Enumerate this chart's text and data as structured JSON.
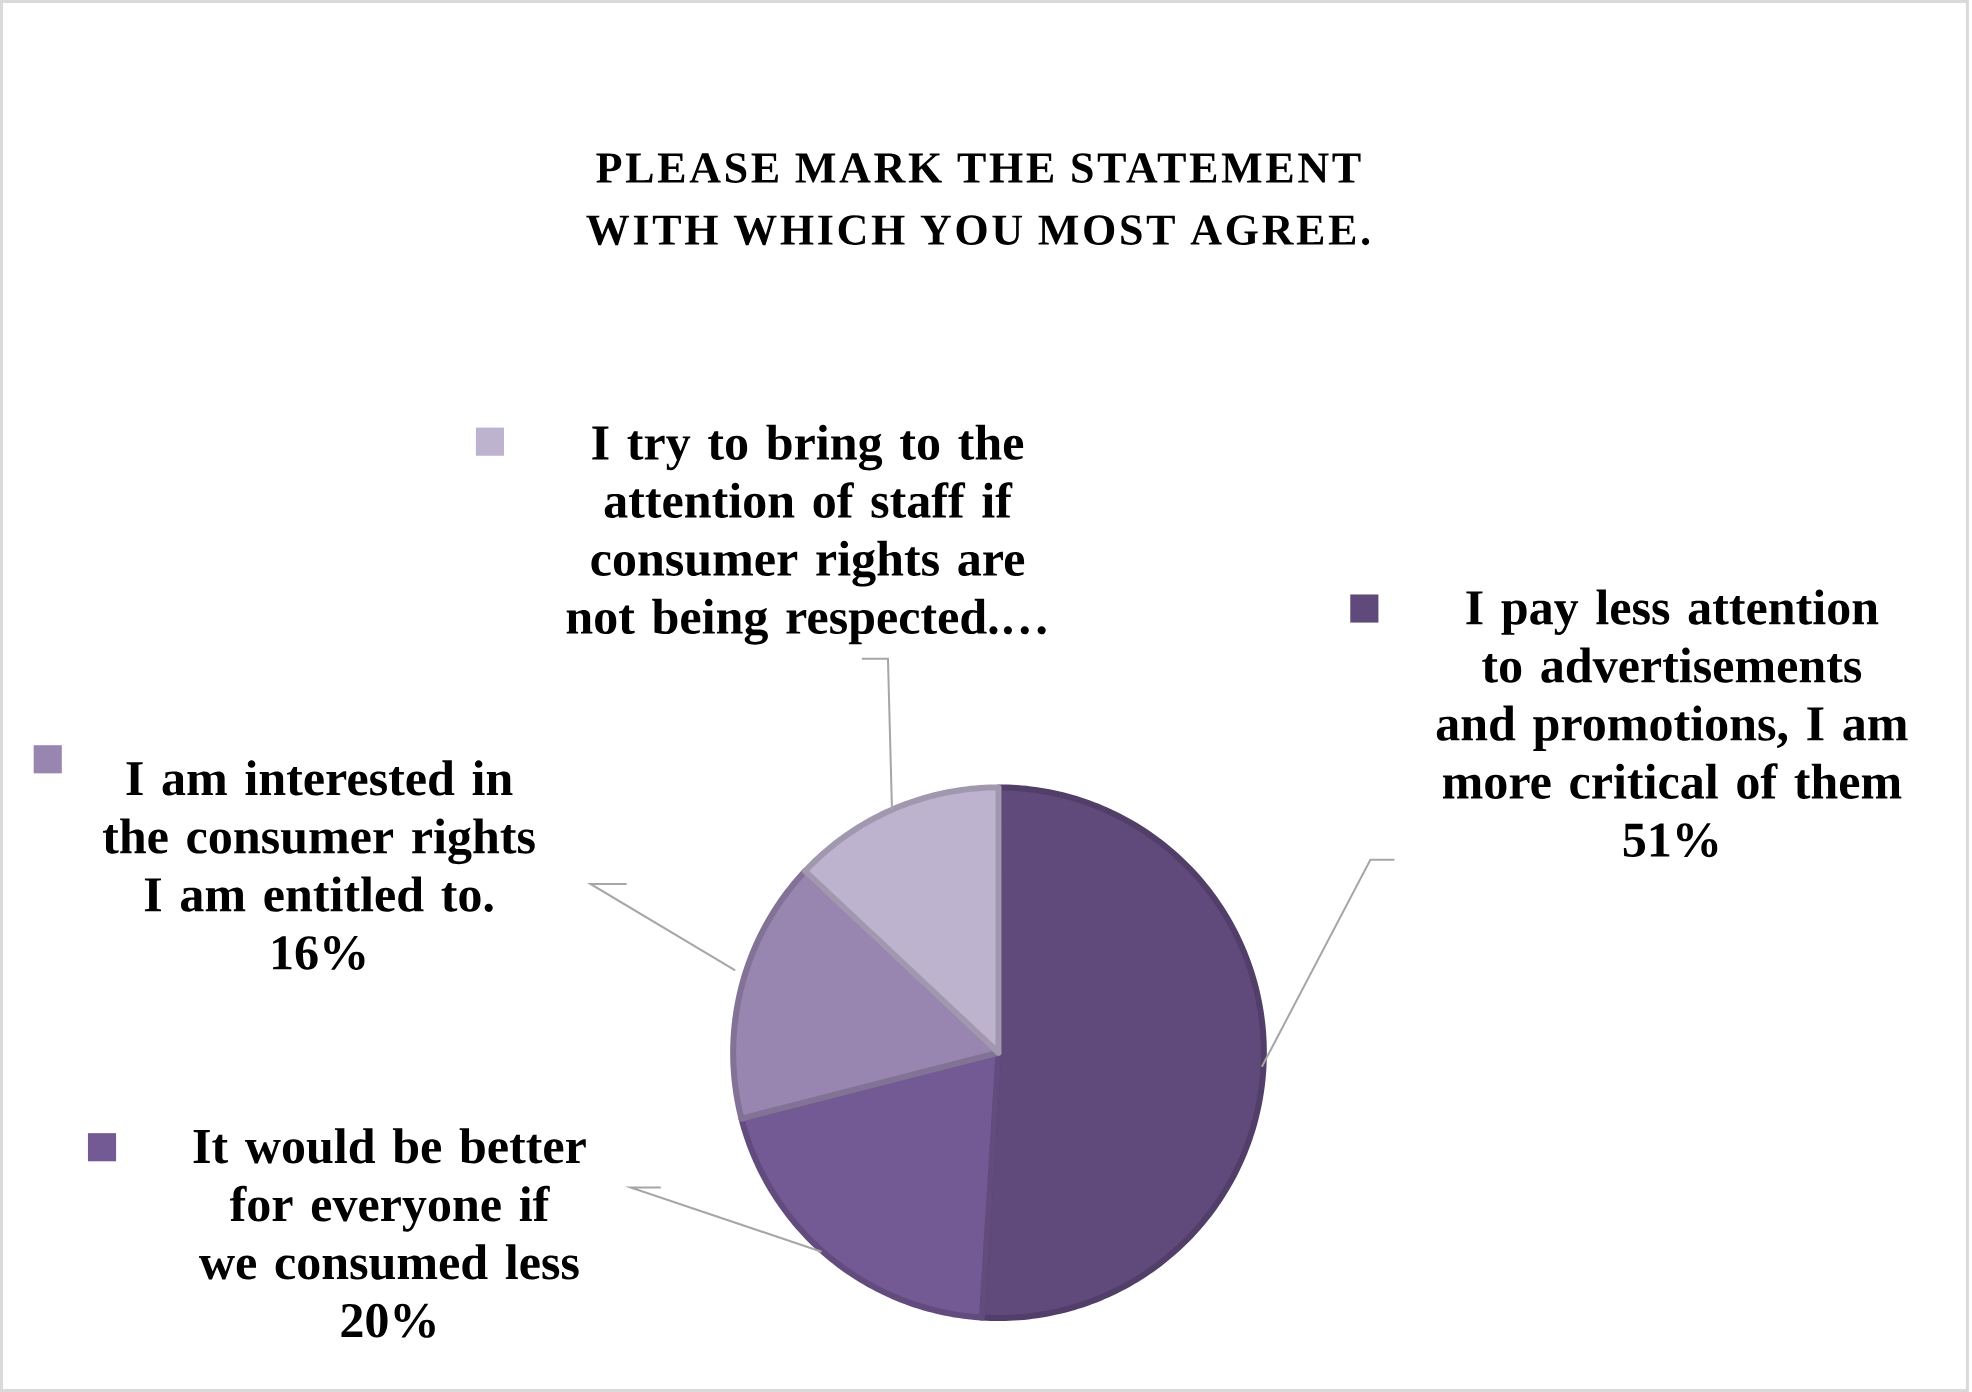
{
  "chart_data": {
    "type": "pie",
    "title": "PLEASE MARK THE STATEMENT WITH WHICH YOU MOST AGREE.",
    "categories": [
      "I pay less attention to advertisements and promotions, I am more critical of them",
      "It would be better for everyone if we consumed less",
      "I am interested in the consumer rights I am entitled to.",
      "I try to bring to the attention of staff if consumer rights are not being respected.…"
    ],
    "values": [
      51,
      20,
      16,
      13
    ],
    "value_labels": [
      "51%",
      "20%",
      "16%",
      null
    ],
    "colors": [
      "#604a7b",
      "#735a94",
      "#9886b0",
      "#bdb3cf"
    ],
    "legend": "left"
  }
}
